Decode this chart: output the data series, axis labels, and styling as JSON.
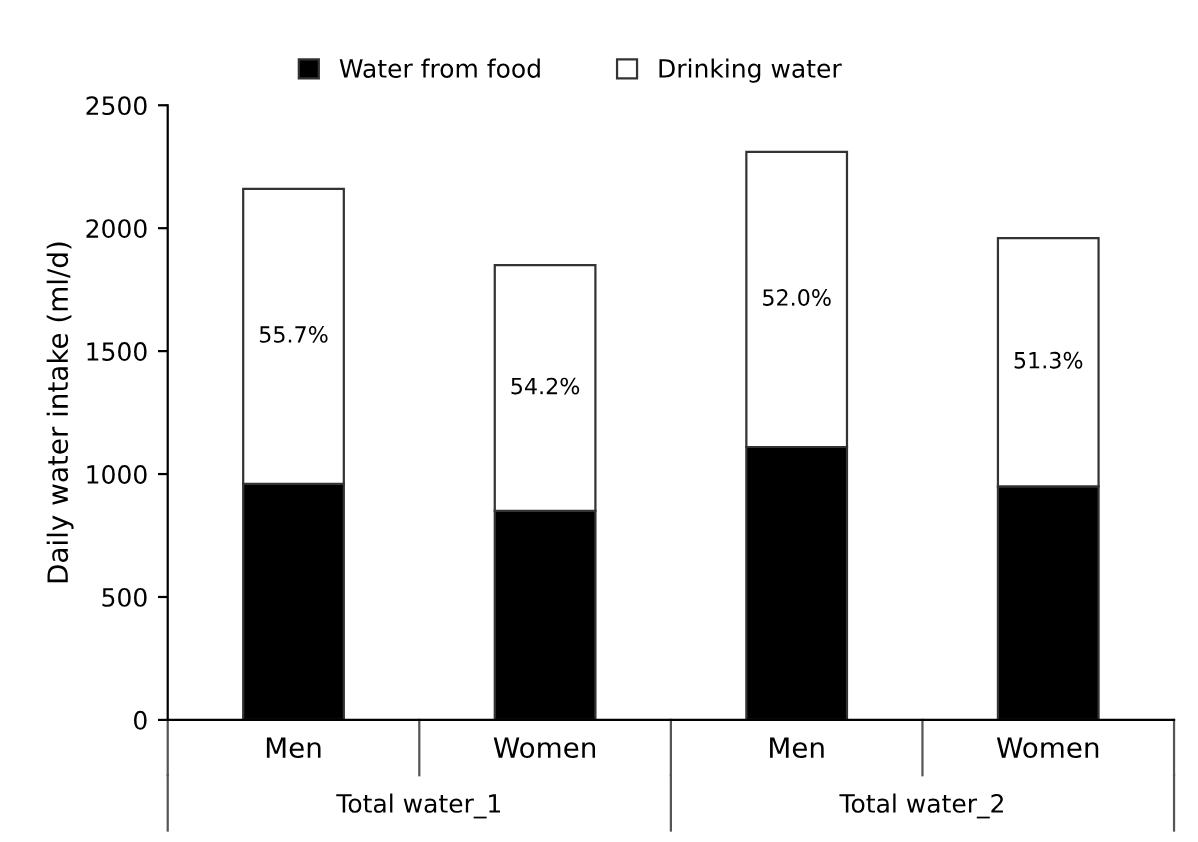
{
  "chart_data": {
    "type": "bar",
    "stacked": true,
    "ylabel": "Daily water intake (ml/d)",
    "categories": [
      "Men",
      "Women",
      "Men",
      "Women"
    ],
    "series": [
      {
        "name": "Water from food",
        "color": "#000000",
        "values": [
          960,
          850,
          1110,
          950
        ]
      },
      {
        "name": "Drinking water",
        "color": "#ffffff",
        "values": [
          1200,
          1000,
          1200,
          1010
        ]
      }
    ],
    "annotations": [
      "55.7%",
      "54.2%",
      "52.0%",
      "51.3%",
      "Total water_1",
      "Total water_2"
    ],
    "ylim": [
      0,
      2500
    ],
    "yticks": [
      0,
      500,
      1000,
      1500,
      2000,
      2500
    ],
    "grid": false,
    "legend": "top"
  }
}
